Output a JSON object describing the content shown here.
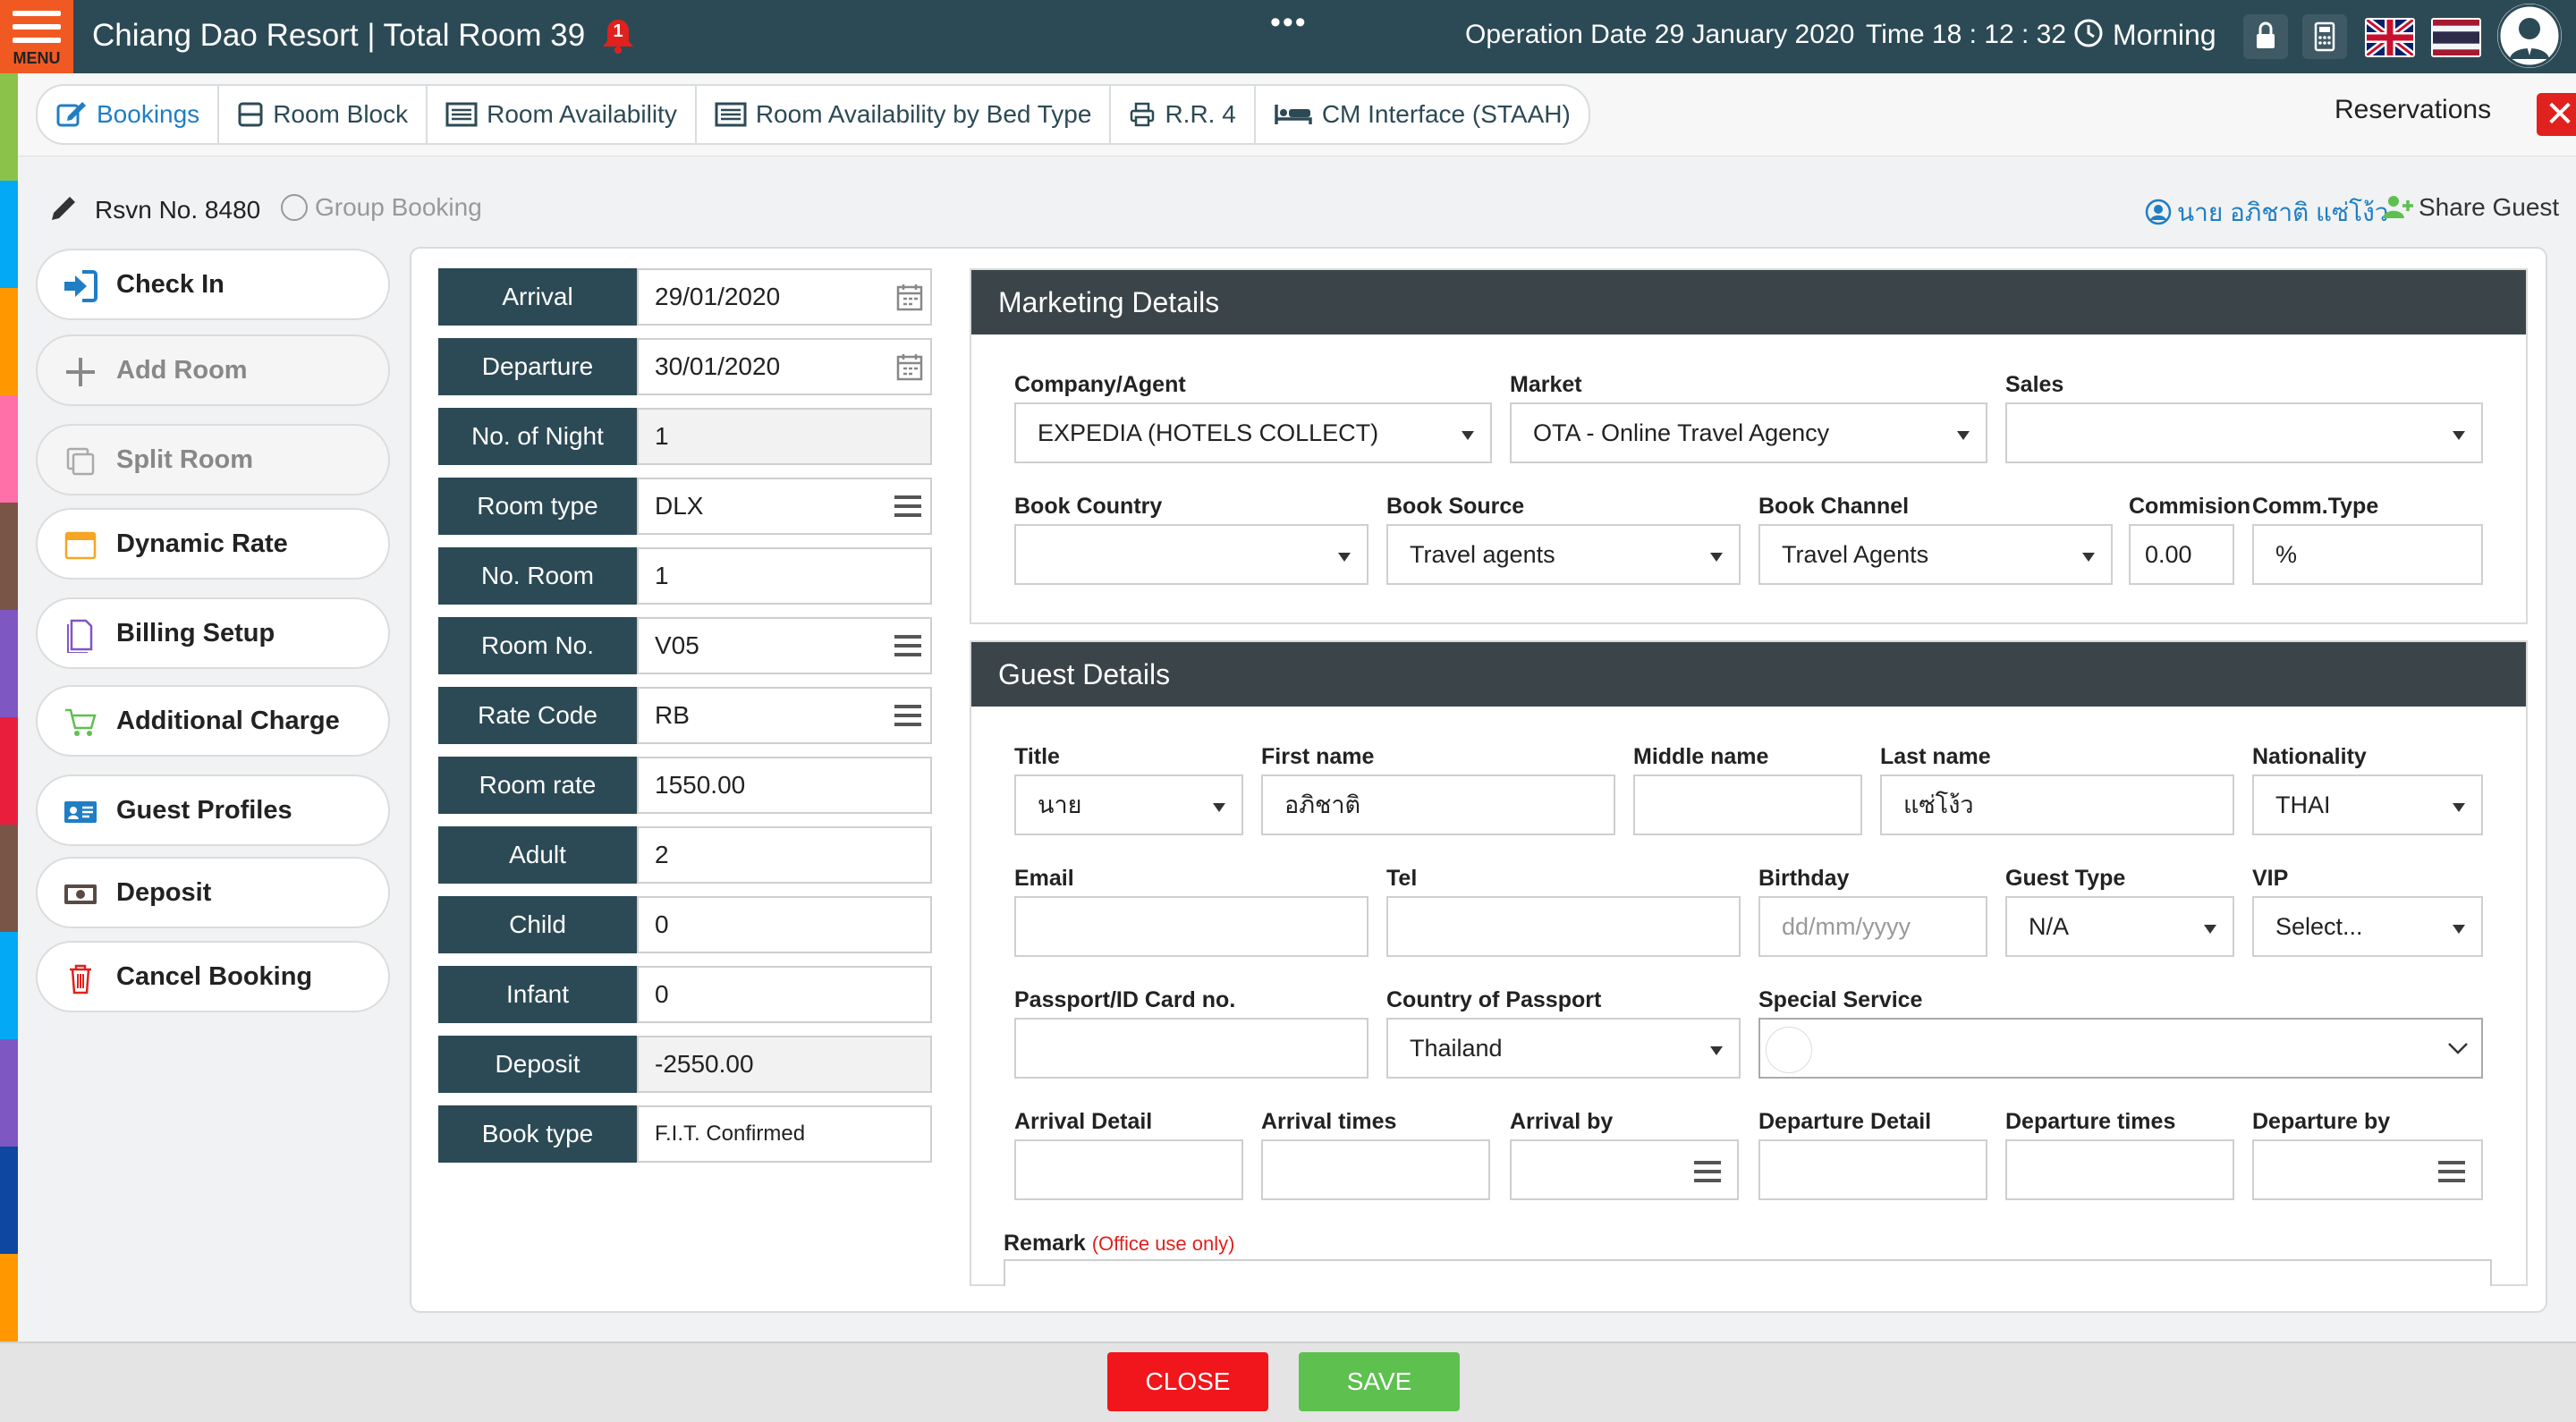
{
  "header": {
    "menu_label": "MENU",
    "title": "Chiang Dao Resort | Total Room 39",
    "notification_count": "1",
    "more": "•••",
    "operation_date": "Operation Date 29 January 2020",
    "time": "Time 18 : 12 : 32",
    "shift": "Morning"
  },
  "tabs": [
    {
      "label": "Bookings"
    },
    {
      "label": "Room Block"
    },
    {
      "label": "Room Availability"
    },
    {
      "label": "Room Availability by Bed Type"
    },
    {
      "label": "R.R. 4"
    },
    {
      "label": "CM Interface (STAAH)"
    }
  ],
  "tabbar": {
    "section_title": "Reservations",
    "close": "✕"
  },
  "subheader": {
    "rsvn": "Rsvn No. 8480",
    "group_booking": "Group Booking",
    "guest_name": "นาย อภิชาติ แซ่โง้ว",
    "share_guest": "Share Guest"
  },
  "sidebar": [
    {
      "label": "Check In"
    },
    {
      "label": "Add Room"
    },
    {
      "label": "Split Room"
    },
    {
      "label": "Dynamic Rate"
    },
    {
      "label": "Billing Setup"
    },
    {
      "label": "Additional Charge"
    },
    {
      "label": "Guest Profiles"
    },
    {
      "label": "Deposit"
    },
    {
      "label": "Cancel Booking"
    }
  ],
  "booking": [
    {
      "label": "Arrival",
      "value": "29/01/2020"
    },
    {
      "label": "Departure",
      "value": "30/01/2020"
    },
    {
      "label": "No. of Night",
      "value": "1"
    },
    {
      "label": "Room type",
      "value": "DLX"
    },
    {
      "label": "No. Room",
      "value": "1"
    },
    {
      "label": "Room No.",
      "value": "V05"
    },
    {
      "label": "Rate Code",
      "value": "RB"
    },
    {
      "label": "Room rate",
      "value": "1550.00"
    },
    {
      "label": "Adult",
      "value": "2"
    },
    {
      "label": "Child",
      "value": "0"
    },
    {
      "label": "Infant",
      "value": "0"
    },
    {
      "label": "Deposit",
      "value": "-2550.00"
    },
    {
      "label": "Book type",
      "value": "F.I.T. Confirmed"
    }
  ],
  "marketing": {
    "title": "Marketing Details",
    "company_agent": {
      "label": "Company/Agent",
      "value": "EXPEDIA (HOTELS COLLECT)"
    },
    "market": {
      "label": "Market",
      "value": "OTA - Online Travel Agency"
    },
    "sales": {
      "label": "Sales",
      "value": ""
    },
    "book_country": {
      "label": "Book Country",
      "value": ""
    },
    "book_source": {
      "label": "Book Source",
      "value": "Travel agents"
    },
    "book_channel": {
      "label": "Book Channel",
      "value": "Travel Agents"
    },
    "commission": {
      "label": "Commision",
      "value": "0.00"
    },
    "comm_type": {
      "label": "Comm.Type",
      "value": "%"
    }
  },
  "guest": {
    "title": "Guest Details",
    "title_field": {
      "label": "Title",
      "value": "นาย"
    },
    "first_name": {
      "label": "First name",
      "value": "อภิชาติ"
    },
    "middle_name": {
      "label": "Middle name",
      "value": ""
    },
    "last_name": {
      "label": "Last name",
      "value": "แซ่โง้ว"
    },
    "nationality": {
      "label": "Nationality",
      "value": "THAI"
    },
    "email": {
      "label": "Email",
      "value": ""
    },
    "tel": {
      "label": "Tel",
      "value": ""
    },
    "birthday": {
      "label": "Birthday",
      "placeholder": "dd/mm/yyyy"
    },
    "guest_type": {
      "label": "Guest Type",
      "value": "N/A"
    },
    "vip": {
      "label": "VIP",
      "value": "Select..."
    },
    "passport": {
      "label": "Passport/ID Card no.",
      "value": ""
    },
    "country_passport": {
      "label": "Country of Passport",
      "value": "Thailand"
    },
    "special_service": {
      "label": "Special Service",
      "value": ""
    },
    "arrival_detail": {
      "label": "Arrival Detail",
      "value": ""
    },
    "arrival_times": {
      "label": "Arrival times",
      "value": ""
    },
    "arrival_by": {
      "label": "Arrival by",
      "value": ""
    },
    "departure_detail": {
      "label": "Departure Detail",
      "value": ""
    },
    "departure_times": {
      "label": "Departure times",
      "value": ""
    },
    "departure_by": {
      "label": "Departure by",
      "value": ""
    },
    "remark": {
      "label": "Remark",
      "note": "(Office use only)"
    }
  },
  "footer": {
    "close": "CLOSE",
    "save": "SAVE"
  },
  "colors": {
    "header_bg": "#2c4a55",
    "menu_orange": "#f05a22",
    "accent_blue": "#1f7ec4",
    "close_red": "#f0161b",
    "save_green": "#5dc04f",
    "panel_head": "#3b4448"
  }
}
